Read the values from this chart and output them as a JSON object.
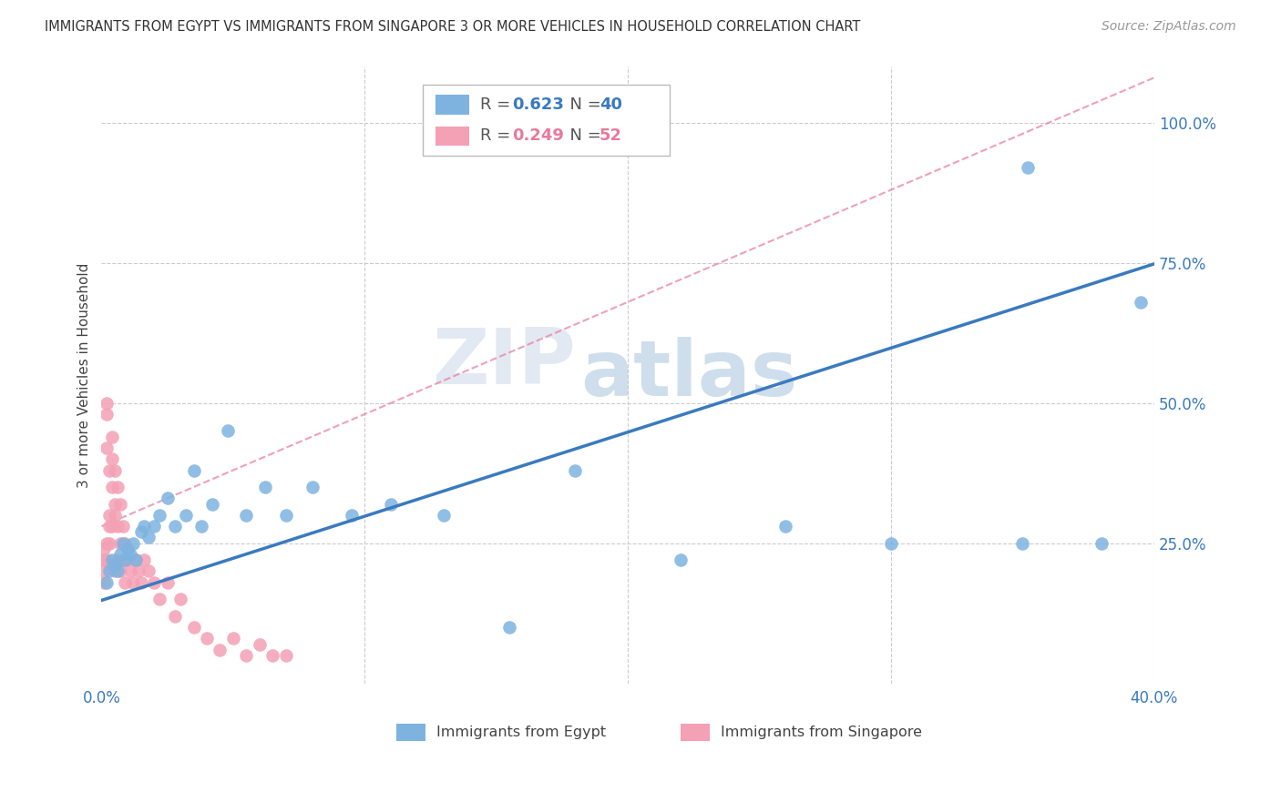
{
  "title": "IMMIGRANTS FROM EGYPT VS IMMIGRANTS FROM SINGAPORE 3 OR MORE VEHICLES IN HOUSEHOLD CORRELATION CHART",
  "source": "Source: ZipAtlas.com",
  "ylabel": "3 or more Vehicles in Household",
  "egypt_color": "#7eb3e0",
  "singapore_color": "#f4a0b5",
  "egypt_R": 0.623,
  "egypt_N": 40,
  "singapore_R": 0.249,
  "singapore_N": 52,
  "egypt_line_color": "#3a7abf",
  "singapore_line_color": "#e87a9a",
  "watermark_zip": "ZIP",
  "watermark_atlas": "atlas",
  "background_color": "#ffffff",
  "grid_color": "#cccccc",
  "xlim": [
    0.0,
    0.4
  ],
  "ylim": [
    0.0,
    1.1
  ],
  "egypt_x": [
    0.002,
    0.003,
    0.004,
    0.005,
    0.006,
    0.007,
    0.008,
    0.009,
    0.01,
    0.011,
    0.012,
    0.013,
    0.015,
    0.016,
    0.018,
    0.02,
    0.022,
    0.025,
    0.028,
    0.032,
    0.035,
    0.038,
    0.042,
    0.048,
    0.055,
    0.062,
    0.07,
    0.08,
    0.095,
    0.11,
    0.13,
    0.155,
    0.18,
    0.22,
    0.26,
    0.3,
    0.35,
    0.38,
    0.395,
    0.352
  ],
  "egypt_y": [
    0.18,
    0.2,
    0.22,
    0.21,
    0.2,
    0.23,
    0.25,
    0.22,
    0.24,
    0.23,
    0.25,
    0.22,
    0.27,
    0.28,
    0.26,
    0.28,
    0.3,
    0.33,
    0.28,
    0.3,
    0.38,
    0.28,
    0.32,
    0.45,
    0.3,
    0.35,
    0.3,
    0.35,
    0.3,
    0.32,
    0.3,
    0.1,
    0.38,
    0.22,
    0.28,
    0.25,
    0.25,
    0.25,
    0.68,
    0.92
  ],
  "singapore_x": [
    0.001,
    0.001,
    0.001,
    0.001,
    0.002,
    0.002,
    0.002,
    0.002,
    0.002,
    0.003,
    0.003,
    0.003,
    0.003,
    0.004,
    0.004,
    0.004,
    0.004,
    0.005,
    0.005,
    0.005,
    0.005,
    0.006,
    0.006,
    0.006,
    0.007,
    0.007,
    0.007,
    0.008,
    0.008,
    0.009,
    0.009,
    0.01,
    0.011,
    0.012,
    0.013,
    0.014,
    0.015,
    0.016,
    0.018,
    0.02,
    0.022,
    0.025,
    0.028,
    0.03,
    0.035,
    0.04,
    0.045,
    0.05,
    0.055,
    0.06,
    0.065,
    0.07
  ],
  "singapore_y": [
    0.18,
    0.2,
    0.22,
    0.24,
    0.42,
    0.48,
    0.5,
    0.25,
    0.22,
    0.38,
    0.3,
    0.28,
    0.25,
    0.44,
    0.4,
    0.35,
    0.28,
    0.38,
    0.32,
    0.3,
    0.2,
    0.35,
    0.28,
    0.22,
    0.32,
    0.25,
    0.2,
    0.28,
    0.22,
    0.25,
    0.18,
    0.22,
    0.2,
    0.18,
    0.22,
    0.2,
    0.18,
    0.22,
    0.2,
    0.18,
    0.15,
    0.18,
    0.12,
    0.15,
    0.1,
    0.08,
    0.06,
    0.08,
    0.05,
    0.07,
    0.05,
    0.05
  ],
  "blue_line_x0": 0.0,
  "blue_line_y0": 0.148,
  "blue_line_x1": 0.4,
  "blue_line_y1": 0.748,
  "pink_line_x0": 0.0,
  "pink_line_y0": 0.28,
  "pink_line_x1": 0.4,
  "pink_line_y1": 1.08
}
